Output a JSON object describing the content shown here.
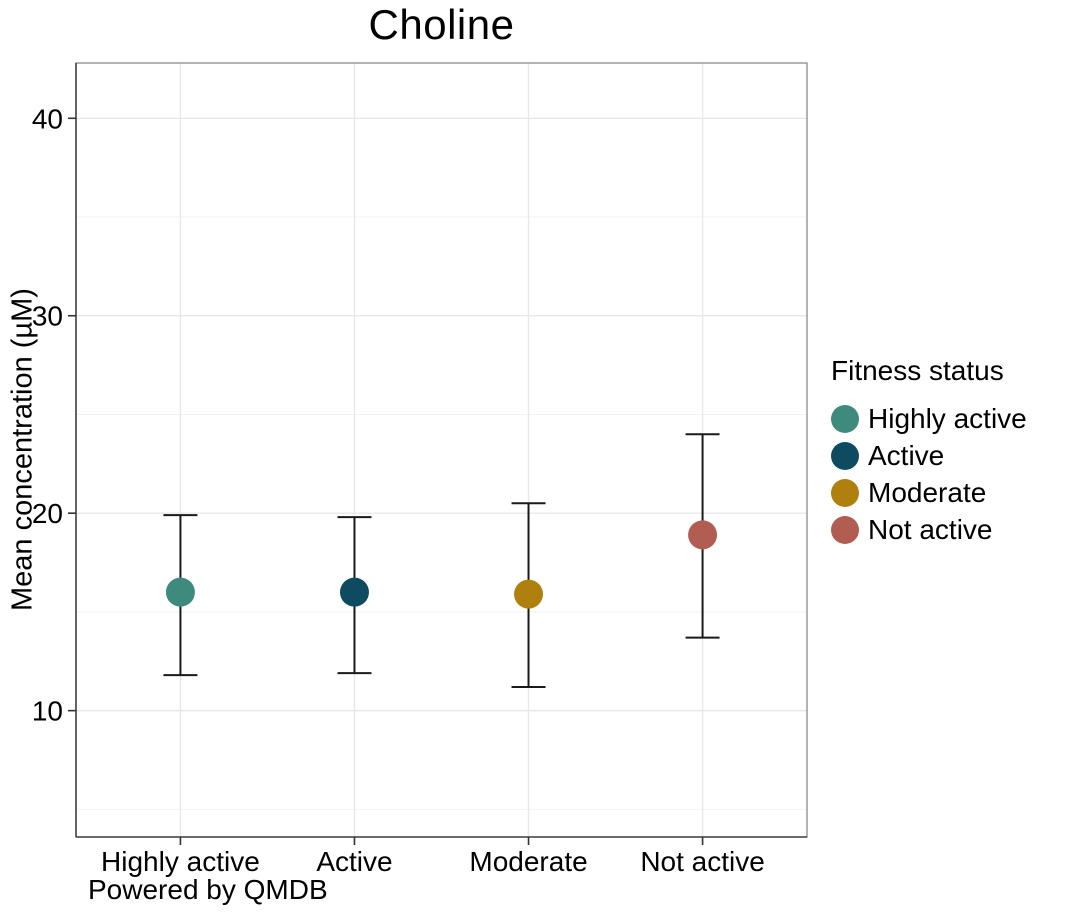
{
  "chart_data": {
    "type": "pointrange",
    "title": "Choline",
    "ylabel": "Mean concentration (µM)",
    "xlabel": "",
    "caption": "Powered by QMDB",
    "categories": [
      "Highly active",
      "Active",
      "Moderate",
      "Not active"
    ],
    "series": [
      {
        "name": "Highly active",
        "mean": 16.0,
        "lower": 11.8,
        "upper": 19.9,
        "color": "#3E8B7D"
      },
      {
        "name": "Active",
        "mean": 16.0,
        "lower": 11.9,
        "upper": 19.8,
        "color": "#0E4B61"
      },
      {
        "name": "Moderate",
        "mean": 15.9,
        "lower": 11.2,
        "upper": 20.5,
        "color": "#B0800E"
      },
      {
        "name": "Not active",
        "mean": 18.9,
        "lower": 13.7,
        "upper": 24.0,
        "color": "#B25D51"
      }
    ],
    "yticks": [
      10,
      20,
      30,
      40
    ],
    "yticks_minor": [
      5,
      15,
      25,
      35
    ],
    "ylim": [
      3.6,
      42.8
    ],
    "grid": true,
    "legend": {
      "title": "Fitness status",
      "position": "right",
      "entries": [
        "Highly active",
        "Active",
        "Moderate",
        "Not active"
      ]
    }
  },
  "colors": {
    "background": "#ffffff",
    "grid_major": "#e8e8e8",
    "grid_minor": "#f2f2f2",
    "panel_border": "#8a8a8a",
    "axis_line": "#474747",
    "tick": "#333333",
    "errorbar": "#1a1a1a",
    "text": "#000000"
  }
}
